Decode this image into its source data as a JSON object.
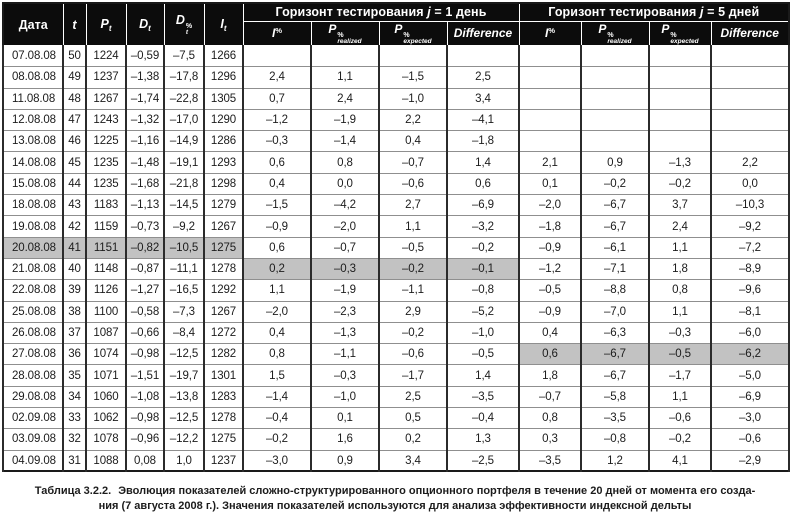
{
  "table": {
    "fixed_headers": [
      {
        "label": "Дата"
      },
      {
        "base": "t"
      },
      {
        "base": "P",
        "sub": "t"
      },
      {
        "base": "D",
        "sub": "t"
      },
      {
        "base": "D",
        "sub": "t",
        "sup": "%"
      },
      {
        "base": "I",
        "sub": "t"
      }
    ],
    "groups": [
      {
        "title_prefix": "Горизонт тестирования ",
        "title_var": "j",
        "title_suffix": " = 1 день"
      },
      {
        "title_prefix": "Горизонт тестирования ",
        "title_var": "j",
        "title_suffix": " = 5 дней"
      }
    ],
    "sub_headers": [
      {
        "base": "I",
        "sup": "%"
      },
      {
        "base": "P",
        "sup": "%",
        "sub": "realized"
      },
      {
        "base": "P",
        "sup": "%",
        "sub": "expected"
      },
      {
        "base": "Difference"
      }
    ],
    "rows": [
      [
        "07.08.08",
        "50",
        "1224",
        "–0,59",
        "–7,5",
        "1266",
        "",
        "",
        "",
        "",
        "",
        "",
        "",
        ""
      ],
      [
        "08.08.08",
        "49",
        "1237",
        "–1,38",
        "–17,8",
        "1296",
        "2,4",
        "1,1",
        "–1,5",
        "2,5",
        "",
        "",
        "",
        ""
      ],
      [
        "11.08.08",
        "48",
        "1267",
        "–1,74",
        "–22,8",
        "1305",
        "0,7",
        "2,4",
        "–1,0",
        "3,4",
        "",
        "",
        "",
        ""
      ],
      [
        "12.08.08",
        "47",
        "1243",
        "–1,32",
        "–17,0",
        "1290",
        "–1,2",
        "–1,9",
        "2,2",
        "–4,1",
        "",
        "",
        "",
        ""
      ],
      [
        "13.08.08",
        "46",
        "1225",
        "–1,16",
        "–14,9",
        "1286",
        "–0,3",
        "–1,4",
        "0,4",
        "–1,8",
        "",
        "",
        "",
        ""
      ],
      [
        "14.08.08",
        "45",
        "1235",
        "–1,48",
        "–19,1",
        "1293",
        "0,6",
        "0,8",
        "–0,7",
        "1,4",
        "2,1",
        "0,9",
        "–1,3",
        "2,2"
      ],
      [
        "15.08.08",
        "44",
        "1235",
        "–1,68",
        "–21,8",
        "1298",
        "0,4",
        "0,0",
        "–0,6",
        "0,6",
        "0,1",
        "–0,2",
        "–0,2",
        "0,0"
      ],
      [
        "18.08.08",
        "43",
        "1183",
        "–1,13",
        "–14,5",
        "1279",
        "–1,5",
        "–4,2",
        "2,7",
        "–6,9",
        "–2,0",
        "–6,7",
        "3,7",
        "–10,3"
      ],
      [
        "19.08.08",
        "42",
        "1159",
        "–0,73",
        "–9,2",
        "1267",
        "–0,9",
        "–2,0",
        "1,1",
        "–3,2",
        "–1,8",
        "–6,7",
        "2,4",
        "–9,2"
      ],
      [
        "20.08.08",
        "41",
        "1151",
        "–0,82",
        "–10,5",
        "1275",
        "0,6",
        "–0,7",
        "–0,5",
        "–0,2",
        "–0,9",
        "–6,1",
        "1,1",
        "–7,2"
      ],
      [
        "21.08.08",
        "40",
        "1148",
        "–0,87",
        "–11,1",
        "1278",
        "0,2",
        "–0,3",
        "–0,2",
        "–0,1",
        "–1,2",
        "–7,1",
        "1,8",
        "–8,9"
      ],
      [
        "22.08.08",
        "39",
        "1126",
        "–1,27",
        "–16,5",
        "1292",
        "1,1",
        "–1,9",
        "–1,1",
        "–0,8",
        "–0,5",
        "–8,8",
        "0,8",
        "–9,6"
      ],
      [
        "25.08.08",
        "38",
        "1100",
        "–0,58",
        "–7,3",
        "1267",
        "–2,0",
        "–2,3",
        "2,9",
        "–5,2",
        "–0,9",
        "–7,0",
        "1,1",
        "–8,1"
      ],
      [
        "26.08.08",
        "37",
        "1087",
        "–0,66",
        "–8,4",
        "1272",
        "0,4",
        "–1,3",
        "–0,2",
        "–1,0",
        "0,4",
        "–6,3",
        "–0,3",
        "–6,0"
      ],
      [
        "27.08.08",
        "36",
        "1074",
        "–0,98",
        "–12,5",
        "1282",
        "0,8",
        "–1,1",
        "–0,6",
        "–0,5",
        "0,6",
        "–6,7",
        "–0,5",
        "–6,2"
      ],
      [
        "28.08.08",
        "35",
        "1071",
        "–1,51",
        "–19,7",
        "1301",
        "1,5",
        "–0,3",
        "–1,7",
        "1,4",
        "1,8",
        "–6,7",
        "–1,7",
        "–5,0"
      ],
      [
        "29.08.08",
        "34",
        "1060",
        "–1,08",
        "–13,8",
        "1283",
        "–1,4",
        "–1,0",
        "2,5",
        "–3,5",
        "–0,7",
        "–5,8",
        "1,1",
        "–6,9"
      ],
      [
        "02.09.08",
        "33",
        "1062",
        "–0,98",
        "–12,5",
        "1278",
        "–0,4",
        "0,1",
        "0,5",
        "–0,4",
        "0,8",
        "–3,5",
        "–0,6",
        "–3,0"
      ],
      [
        "03.09.08",
        "32",
        "1078",
        "–0,96",
        "–12,2",
        "1275",
        "–0,2",
        "1,6",
        "0,2",
        "1,3",
        "0,3",
        "–0,8",
        "–0,2",
        "–0,6"
      ],
      [
        "04.09.08",
        "31",
        "1088",
        "0,08",
        "1,0",
        "1237",
        "–3,0",
        "0,9",
        "3,4",
        "–2,5",
        "–3,5",
        "1,2",
        "4,1",
        "–2,9"
      ]
    ],
    "highlighted_cells": [
      {
        "row": 9,
        "cols": [
          0,
          1,
          2,
          3,
          4,
          5
        ]
      },
      {
        "row": 10,
        "cols": [
          6,
          7,
          8,
          9
        ]
      },
      {
        "row": 14,
        "cols": [
          10,
          11,
          12,
          13
        ]
      }
    ],
    "highlight_color": "#c2c2c2",
    "header_bg": "#0c0c0c"
  },
  "caption": {
    "label": "Таблица 3.2.2.",
    "line1": "Эволюция показателей сложно-структурированного опционного портфеля в течение 20 дней от момента его созда-",
    "line2": "ния (7 августа 2008 г.). Значения показателей используются для анализа эффективности индексной дельты"
  }
}
